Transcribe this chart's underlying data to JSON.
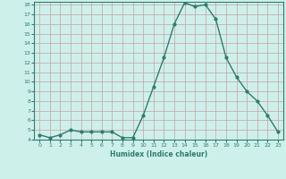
{
  "x": [
    0,
    1,
    2,
    3,
    4,
    5,
    6,
    7,
    8,
    9,
    10,
    11,
    12,
    13,
    14,
    15,
    16,
    17,
    18,
    19,
    20,
    21,
    22,
    23
  ],
  "y": [
    4.5,
    4.2,
    4.5,
    5.0,
    4.8,
    4.8,
    4.8,
    4.8,
    4.2,
    4.2,
    6.5,
    9.5,
    12.5,
    16.0,
    18.2,
    17.8,
    18.0,
    16.5,
    12.5,
    10.5,
    9.0,
    8.0,
    6.5,
    4.8
  ],
  "xlabel": "Humidex (Indice chaleur)",
  "ylim": [
    4,
    18
  ],
  "xlim": [
    -0.5,
    23.5
  ],
  "yticks": [
    4,
    5,
    6,
    7,
    8,
    9,
    10,
    11,
    12,
    13,
    14,
    15,
    16,
    17,
    18
  ],
  "xticks": [
    0,
    1,
    2,
    3,
    4,
    5,
    6,
    7,
    8,
    9,
    10,
    11,
    12,
    13,
    14,
    15,
    16,
    17,
    18,
    19,
    20,
    21,
    22,
    23
  ],
  "line_color": "#2d7d6e",
  "bg_color": "#cef0ea",
  "grid_color": "#c8a0a0"
}
